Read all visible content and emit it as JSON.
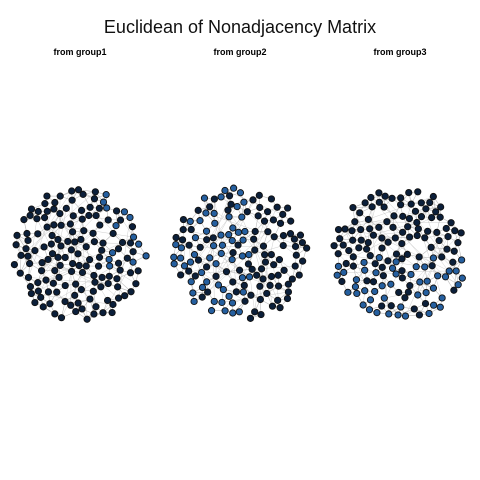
{
  "title": "Euclidean of Nonadjacency Matrix",
  "panels": [
    {
      "title": "from group1",
      "highlight_region": "right",
      "highlight_fraction": 0.22
    },
    {
      "title": "from group2",
      "highlight_region": "left",
      "highlight_fraction": 0.38
    },
    {
      "title": "from group3",
      "highlight_region": "lower",
      "highlight_fraction": 0.31
    }
  ],
  "network": {
    "node_count": 150,
    "edge_color": "#b8b8b8",
    "node_stroke": "#111111",
    "node_dark": "#0b1f3a",
    "node_blue": "#255f9f"
  }
}
